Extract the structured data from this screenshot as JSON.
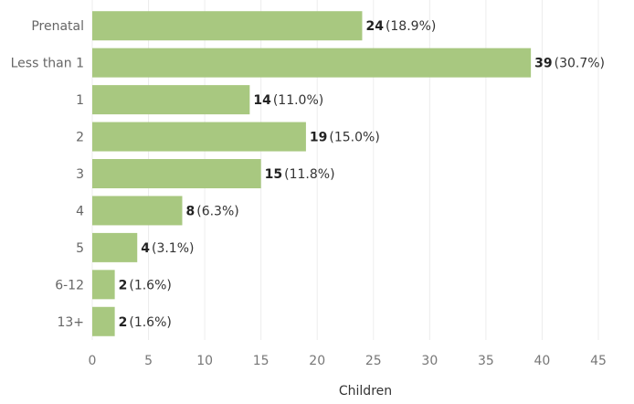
{
  "chart_data": {
    "type": "bar",
    "orientation": "horizontal",
    "categories": [
      "Prenatal",
      "Less than 1",
      "1",
      "2",
      "3",
      "4",
      "5",
      "6-12",
      "13+"
    ],
    "values": [
      24,
      39,
      14,
      19,
      15,
      8,
      4,
      2,
      2
    ],
    "percent_labels": [
      "(18.9%)",
      "(30.7%)",
      "(11.0%)",
      "(15.0%)",
      "(11.8%)",
      "(6.3%)",
      "(3.1%)",
      "(1.6%)",
      "(1.6%)"
    ],
    "xlabel": "Children",
    "ylabel": "",
    "xlim": [
      0,
      45
    ],
    "x_ticks": [
      0,
      5,
      10,
      15,
      20,
      25,
      30,
      35,
      40,
      45
    ],
    "grid": "vertical",
    "legend": "none",
    "bar_color": "#a8c880"
  }
}
